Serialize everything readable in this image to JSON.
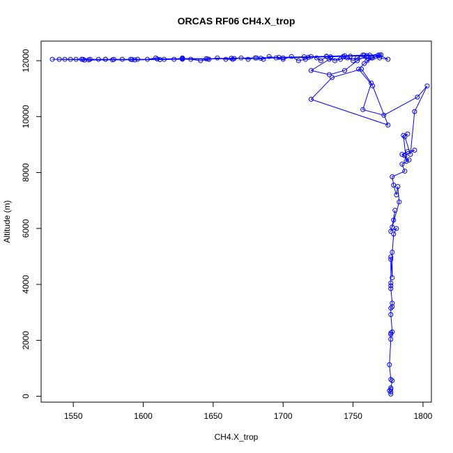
{
  "chart_data": {
    "type": "line",
    "title": "ORCAS RF06 CH4.X_trop",
    "xlabel": "CH4.X_trop",
    "ylabel": "Altitude (m)",
    "xlim": [
      1527,
      1806
    ],
    "ylim": [
      -210,
      12700
    ],
    "xticks": [
      "1550",
      "1600",
      "1650",
      "1700",
      "1750",
      "1800"
    ],
    "yticks": [
      "0",
      "2000",
      "4000",
      "6000",
      "8000",
      "10000",
      "12000"
    ],
    "xtick_values": [
      1550,
      1600,
      1650,
      1700,
      1750,
      1800
    ],
    "ytick_values": [
      0,
      2000,
      4000,
      6000,
      8000,
      10000,
      12000
    ],
    "grid": false,
    "legend": "none",
    "marker": "open-circle",
    "color": "#0000ff",
    "series": [
      {
        "x": [
          1777,
          1777,
          1776,
          1777,
          1777,
          1778,
          1777,
          1776,
          1777,
          1777,
          1777,
          1778,
          1777,
          1777,
          1778,
          1778,
          1777,
          1777,
          1777,
          1777,
          1777,
          1778,
          1778,
          1779,
          1781,
          1777,
          1779,
          1780,
          1778,
          1783,
          1782,
          1781,
          1779,
          1778,
          1787,
          1785,
          1790,
          1785,
          1789,
          1794,
          1787,
          1788,
          1786,
          1789,
          1787,
          1791,
          1794,
          1803,
          1796,
          1772,
          1757,
          1763,
          1756,
          1735,
          1720,
          1775,
          1764,
          1754,
          1758,
          1764,
          1733,
          1720,
          1733,
          1744,
          1753,
          1762,
          1769,
          1775,
          1769,
          1766,
          1763,
          1760,
          1757,
          1753,
          1750,
          1746,
          1743,
          1741,
          1737,
          1734,
          1731,
          1727,
          1724,
          1720,
          1716,
          1711,
          1706,
          1700,
          1695,
          1690,
          1686,
          1680,
          1675,
          1670,
          1664,
          1659,
          1653,
          1647,
          1641,
          1634,
          1628,
          1622,
          1615,
          1609,
          1603,
          1596,
          1591,
          1585,
          1579,
          1573,
          1568,
          1562,
          1556,
          1552,
          1548,
          1544,
          1540,
          1535,
          1561,
          1573,
          1592,
          1610,
          1628,
          1645,
          1663,
          1681,
          1697,
          1715,
          1731,
          1744,
          1758,
          1770,
          1768,
          1760,
          1748,
          1734,
          1718,
          1700,
          1684,
          1665,
          1646,
          1628,
          1612,
          1594,
          1578,
          1558,
          1557
        ],
        "y": [
          80,
          150,
          200,
          250,
          300,
          560,
          600,
          1130,
          2040,
          2210,
          2260,
          2300,
          2920,
          3150,
          3200,
          3330,
          3850,
          3950,
          4050,
          4900,
          4980,
          4240,
          5150,
          5800,
          6000,
          5900,
          6300,
          6650,
          6050,
          6950,
          7500,
          7200,
          7550,
          7850,
          8050,
          8300,
          8450,
          8650,
          8750,
          8800,
          8600,
          8400,
          9330,
          9380,
          9280,
          8650,
          10180,
          11100,
          10700,
          10050,
          10250,
          11200,
          11700,
          11400,
          10620,
          9700,
          11100,
          11700,
          11900,
          12100,
          12050,
          11650,
          11500,
          11650,
          12000,
          12200,
          12100,
          12050,
          12200,
          12150,
          12100,
          12000,
          12200,
          12100,
          12000,
          12100,
          12150,
          12050,
          12000,
          12100,
          12150,
          12000,
          12100,
          12150,
          12050,
          12000,
          12150,
          12050,
          12100,
          12150,
          12050,
          12100,
          12050,
          12100,
          12050,
          12050,
          12100,
          12050,
          12000,
          12050,
          12100,
          12050,
          12050,
          12100,
          12050,
          12050,
          12050,
          12050,
          12050,
          12050,
          12050,
          12050,
          12050,
          12050,
          12050,
          12050,
          12050,
          12050,
          12030,
          12050,
          12040,
          12060,
          12080,
          12070,
          12090,
          12100,
          12120,
          12140,
          12160,
          12180,
          12200,
          12210,
          12200,
          12180,
          12160,
          12140,
          12120,
          12100,
          12090,
          12080,
          12060,
          12050,
          12040,
          12030,
          12030,
          12020,
          12050
        ]
      }
    ]
  }
}
